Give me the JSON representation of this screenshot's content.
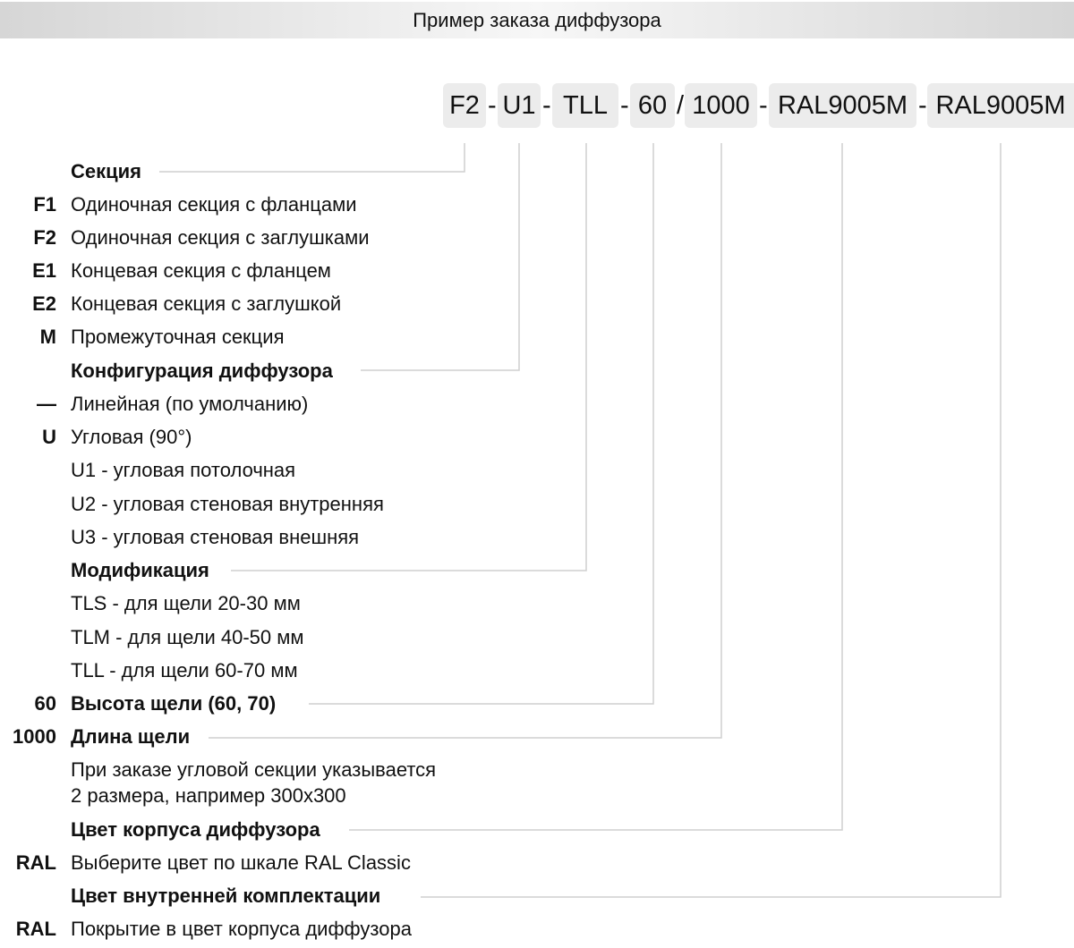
{
  "title": "Пример заказа диффузора",
  "order_code": {
    "segments": [
      "F2",
      "U1",
      "TLL",
      "60",
      "1000",
      "RAL9005M",
      "RAL9005M"
    ],
    "separators": [
      "-",
      "-",
      "-",
      "/",
      "-",
      "-"
    ]
  },
  "rows": [
    {
      "code": "",
      "text": "Секция",
      "heading": true
    },
    {
      "code": "F1",
      "text": "Одиночная секция с  фланцами"
    },
    {
      "code": "F2",
      "text": "Одиночная секция с заглушками"
    },
    {
      "code": "E1",
      "text": "Концевая секция с фланцем"
    },
    {
      "code": "E2",
      "text": "Концевая секция с заглушкой"
    },
    {
      "code": "M",
      "text": "Промежуточная секция"
    },
    {
      "code": "",
      "text": "Конфигурация диффузора",
      "heading": true
    },
    {
      "code": "—",
      "text": "Линейная (по умолчанию)"
    },
    {
      "code": "U",
      "text": "Угловая (90°)"
    },
    {
      "code": "",
      "text": "U1 - угловая потолочная"
    },
    {
      "code": "",
      "text": "U2 - угловая стеновая внутренняя"
    },
    {
      "code": "",
      "text": "U3 - угловая стеновая внешняя"
    },
    {
      "code": "",
      "text": "Модификация",
      "heading": true
    },
    {
      "code": "",
      "text": "TLS - для щели 20-30 мм"
    },
    {
      "code": "",
      "text": "TLM - для щели 40-50 мм"
    },
    {
      "code": "",
      "text": "TLL - для щели 60-70 мм"
    },
    {
      "code": "60",
      "text": "Высота щели (60, 70)",
      "heading": true
    },
    {
      "code": "1000",
      "text": "Длина щели",
      "heading": true
    },
    {
      "code": "",
      "text": "При заказе угловой секции указывается"
    },
    {
      "code": "",
      "text": "2 размера, например 300x300"
    },
    {
      "code": "",
      "text": "Цвет корпуса диффузора",
      "heading": true
    },
    {
      "code": "RAL",
      "text": "Выберите цвет по шкале RAL Classic"
    },
    {
      "code": "",
      "text": "Цвет внутренней комплектации",
      "heading": true
    },
    {
      "code": "RAL",
      "text": "Покрытие в цвет корпуса диффузора"
    }
  ]
}
